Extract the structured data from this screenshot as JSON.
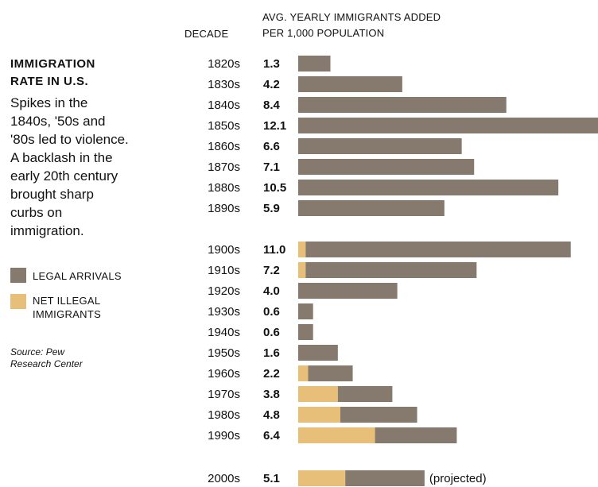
{
  "panel": {
    "title_lines": [
      "IMMIGRATION",
      "RATE IN U.S."
    ],
    "description_lines": [
      "Spikes in the",
      "1840s, '50s and",
      "'80s led to violence.",
      "A backlash in the",
      "early 20th century",
      "brought sharp",
      "curbs on",
      "immigration."
    ],
    "source_lines": [
      "Source: Pew",
      "Research Center"
    ]
  },
  "chart_data": {
    "type": "bar",
    "orientation": "horizontal",
    "stacked": true,
    "column_headers": {
      "category": "DECADE",
      "value_lines": [
        "AVG. YEARLY IMMIGRANTS ADDED",
        "PER 1,000 POPULATION"
      ]
    },
    "categories": [
      "1820s",
      "1830s",
      "1840s",
      "1850s",
      "1860s",
      "1870s",
      "1880s",
      "1890s",
      "1900s",
      "1910s",
      "1920s",
      "1930s",
      "1940s",
      "1950s",
      "1960s",
      "1970s",
      "1980s",
      "1990s",
      "2000s"
    ],
    "totals": [
      "1.3",
      "4.2",
      "8.4",
      "12.1",
      "6.6",
      "7.1",
      "10.5",
      "5.9",
      "11.0",
      "7.2",
      "4.0",
      "0.6",
      "0.6",
      "1.6",
      "2.2",
      "3.8",
      "4.8",
      "6.4",
      "5.1"
    ],
    "series": [
      {
        "name": "NET ILLEGAL IMMIGRANTS",
        "color": "#e8bf78",
        "values": [
          0,
          0,
          0,
          0,
          0,
          0,
          0,
          0,
          0.3,
          0.3,
          0,
          0,
          0,
          0,
          0.4,
          1.6,
          1.7,
          3.1,
          1.9
        ]
      },
      {
        "name": "LEGAL ARRIVALS",
        "color": "#857a6d",
        "values": [
          1.3,
          4.2,
          8.4,
          12.1,
          6.6,
          7.1,
          10.5,
          5.9,
          10.7,
          6.9,
          4.0,
          0.6,
          0.6,
          1.6,
          1.8,
          2.2,
          3.1,
          3.3,
          3.2
        ]
      }
    ],
    "annotations": [
      {
        "category": "2000s",
        "text": "(projected)"
      }
    ],
    "xlim": [
      0,
      12.1
    ],
    "grid": false,
    "legend": "left"
  }
}
